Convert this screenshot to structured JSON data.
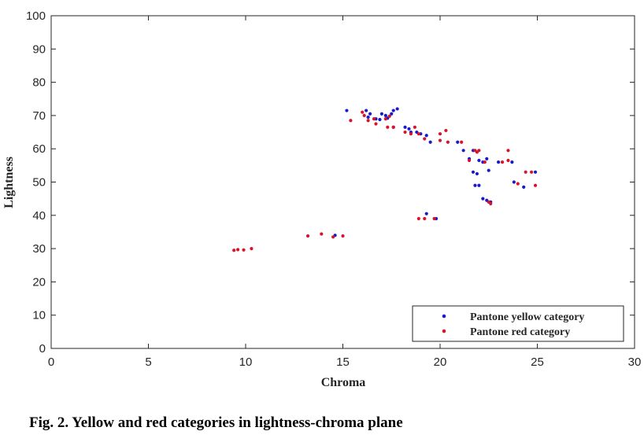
{
  "caption": "Fig. 2. Yellow and red categories in lightness-chroma plane",
  "chart_data": {
    "type": "scatter",
    "title": "",
    "xlabel": "Chroma",
    "ylabel": "Lightness",
    "xlim": [
      0,
      30
    ],
    "ylim": [
      0,
      100
    ],
    "xticks": [
      0,
      5,
      10,
      15,
      20,
      25,
      30
    ],
    "yticks": [
      0,
      10,
      20,
      30,
      40,
      50,
      60,
      70,
      80,
      90,
      100
    ],
    "grid": false,
    "legend": "bottom-right",
    "series": [
      {
        "name": "Pantone yellow category",
        "color": "#1a1acc",
        "points": [
          [
            15.2,
            71.5
          ],
          [
            16.2,
            71.5
          ],
          [
            16.4,
            70.5
          ],
          [
            16.3,
            69.5
          ],
          [
            16.7,
            69.0
          ],
          [
            17.0,
            70.5
          ],
          [
            17.2,
            70.0
          ],
          [
            17.3,
            69.2
          ],
          [
            17.5,
            70.5
          ],
          [
            17.6,
            71.5
          ],
          [
            17.8,
            72.0
          ],
          [
            16.9,
            68.8
          ],
          [
            17.6,
            66.5
          ],
          [
            18.2,
            66.5
          ],
          [
            18.4,
            66.0
          ],
          [
            18.5,
            65.0
          ],
          [
            19.0,
            64.5
          ],
          [
            19.3,
            64.0
          ],
          [
            19.5,
            62.0
          ],
          [
            20.9,
            62.0
          ],
          [
            21.2,
            59.5
          ],
          [
            21.7,
            59.5
          ],
          [
            21.5,
            57.0
          ],
          [
            22.0,
            56.5
          ],
          [
            22.4,
            57.0
          ],
          [
            21.7,
            53.0
          ],
          [
            21.9,
            52.5
          ],
          [
            22.2,
            56.0
          ],
          [
            22.5,
            53.5
          ],
          [
            23.0,
            56.0
          ],
          [
            23.7,
            56.0
          ],
          [
            23.8,
            50.0
          ],
          [
            24.3,
            48.5
          ],
          [
            24.9,
            53.0
          ],
          [
            22.0,
            49.0
          ],
          [
            21.8,
            49.0
          ],
          [
            22.2,
            45.0
          ],
          [
            22.4,
            44.5
          ],
          [
            22.6,
            44.0
          ],
          [
            19.3,
            40.5
          ],
          [
            19.8,
            39.0
          ],
          [
            14.6,
            34.0
          ],
          [
            18.8,
            65.0
          ]
        ]
      },
      {
        "name": "Pantone red category",
        "color": "#d9142a",
        "points": [
          [
            15.4,
            68.5
          ],
          [
            16.0,
            71.0
          ],
          [
            16.3,
            68.5
          ],
          [
            16.6,
            69.0
          ],
          [
            16.7,
            67.5
          ],
          [
            17.2,
            69.0
          ],
          [
            17.3,
            66.5
          ],
          [
            17.6,
            66.5
          ],
          [
            18.2,
            65.0
          ],
          [
            18.7,
            66.5
          ],
          [
            18.9,
            64.5
          ],
          [
            19.2,
            63.0
          ],
          [
            20.0,
            62.5
          ],
          [
            20.0,
            64.5
          ],
          [
            20.3,
            65.5
          ],
          [
            20.4,
            62.0
          ],
          [
            21.1,
            62.0
          ],
          [
            21.5,
            56.5
          ],
          [
            21.8,
            59.5
          ],
          [
            21.9,
            59.0
          ],
          [
            22.0,
            59.5
          ],
          [
            22.3,
            56.0
          ],
          [
            23.2,
            56.0
          ],
          [
            23.5,
            59.5
          ],
          [
            23.5,
            56.5
          ],
          [
            24.0,
            49.5
          ],
          [
            24.4,
            53.0
          ],
          [
            24.7,
            53.0
          ],
          [
            24.9,
            49.0
          ],
          [
            22.5,
            44.0
          ],
          [
            22.6,
            43.5
          ],
          [
            18.9,
            39.0
          ],
          [
            19.2,
            39.0
          ],
          [
            19.7,
            39.0
          ],
          [
            13.2,
            33.8
          ],
          [
            13.9,
            34.4
          ],
          [
            14.5,
            33.5
          ],
          [
            15.0,
            33.8
          ],
          [
            9.4,
            29.5
          ],
          [
            9.6,
            29.7
          ],
          [
            9.9,
            29.6
          ],
          [
            10.3,
            30.0
          ],
          [
            16.1,
            70.0
          ],
          [
            17.4,
            69.8
          ],
          [
            18.5,
            64.5
          ]
        ]
      }
    ]
  }
}
